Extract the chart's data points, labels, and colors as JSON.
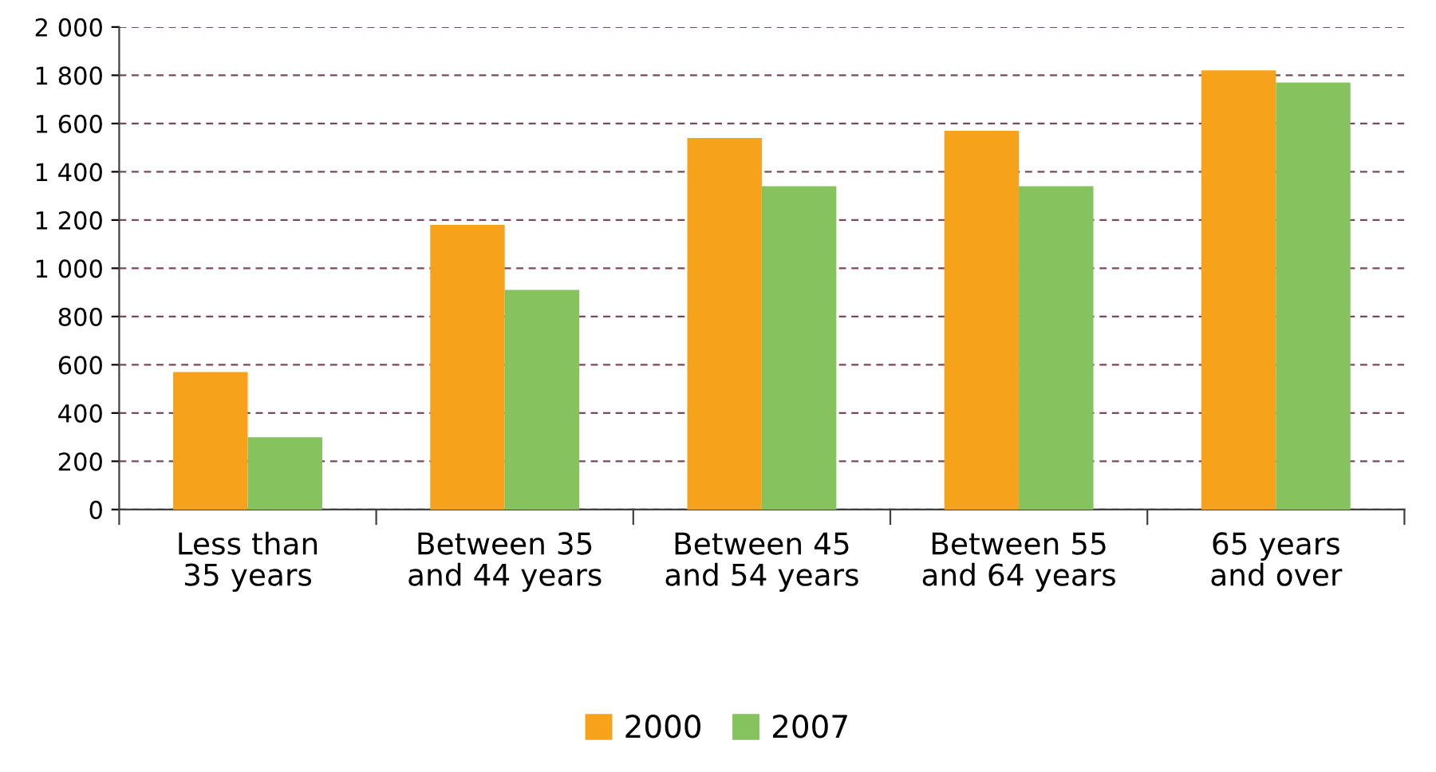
{
  "chart_data": {
    "type": "bar",
    "categories": [
      "Less than\n35 years",
      "Between 35\nand 44 years",
      "Between 45\nand 54 years",
      "Between 55\nand 64 years",
      "65 years\nand over"
    ],
    "series": [
      {
        "name": "2000",
        "color": "#f7a21b",
        "values": [
          570,
          1180,
          1540,
          1570,
          1820
        ]
      },
      {
        "name": "2007",
        "color": "#86c35e",
        "values": [
          300,
          910,
          1340,
          1340,
          1770
        ]
      }
    ],
    "ylim": [
      0,
      2000
    ],
    "yticks": [
      0,
      200,
      400,
      600,
      800,
      {
        "value": 1000,
        "label": "1 000"
      },
      {
        "value": 1200,
        "label": "1 200"
      },
      {
        "value": 1400,
        "label": "1 400"
      },
      {
        "value": 1600,
        "label": "1 600"
      },
      {
        "value": 1800,
        "label": "1 800"
      },
      {
        "value": 2000,
        "label": "2 000"
      }
    ],
    "grid": "y",
    "legend": "bottom"
  }
}
